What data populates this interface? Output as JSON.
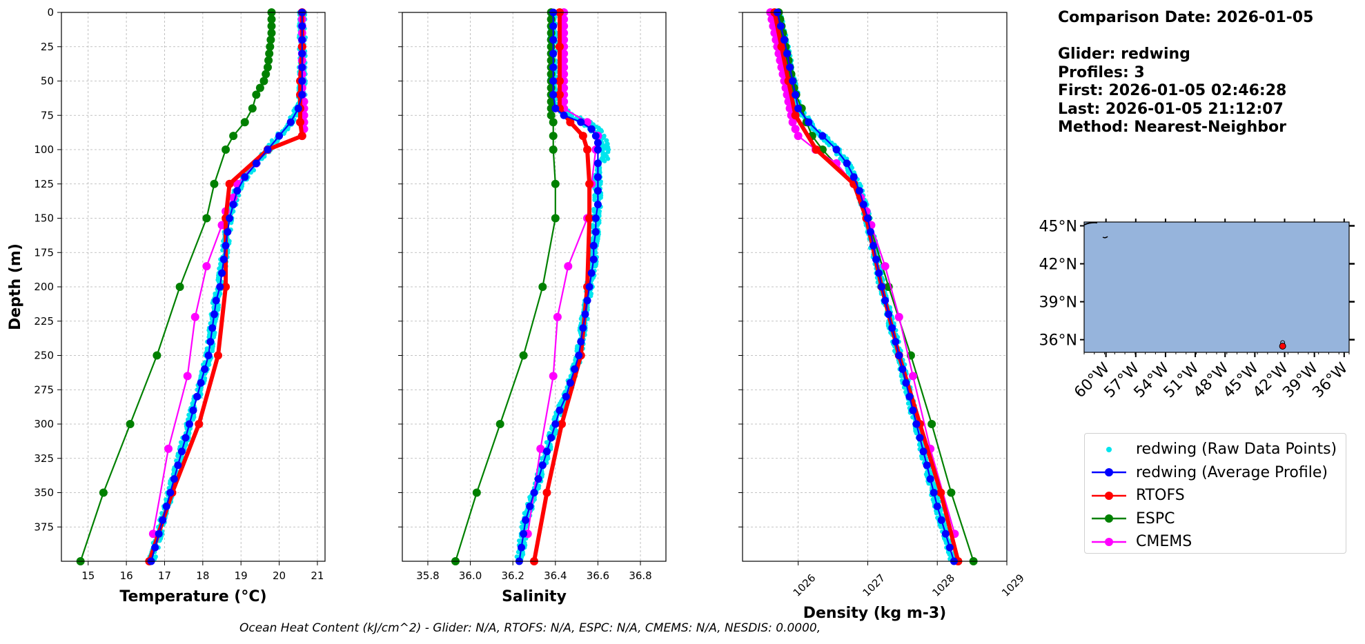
{
  "info": {
    "comparison_date": "Comparison Date: 2026-01-05",
    "glider": "Glider: redwing",
    "profiles": "Profiles: 3",
    "first": "First: 2026-01-05 02:46:28",
    "last": "Last: 2026-01-05 21:12:07",
    "method": "Method: Nearest-Neighbor"
  },
  "footer": "Ocean Heat Content (kJ/cm^2) - Glider: N/A,  RTOFS: N/A,  ESPC: N/A,  CMEMS: N/A,  NESDIS: 0.0000,",
  "colors": {
    "raw": "#00e5ee",
    "avg": "#0000ff",
    "rtofs": "#ff0000",
    "espc": "#008000",
    "cmems": "#ff00ff",
    "ocean": "#96b4dc"
  },
  "legend": [
    {
      "key": "raw",
      "label": "redwing (Raw Data Points)"
    },
    {
      "key": "avg",
      "label": "redwing (Average Profile)"
    },
    {
      "key": "rtofs",
      "label": "RTOFS"
    },
    {
      "key": "espc",
      "label": "ESPC"
    },
    {
      "key": "cmems",
      "label": "CMEMS"
    }
  ],
  "chart_data": [
    {
      "type": "line",
      "xlabel": "Temperature (°C)",
      "ylabel": "Depth (m)",
      "xlim": [
        14.3,
        21.2
      ],
      "ylim": [
        400,
        0
      ],
      "xticks": [
        15,
        16,
        17,
        18,
        19,
        20,
        21
      ],
      "yticks": [
        0,
        25,
        50,
        75,
        100,
        125,
        150,
        175,
        200,
        225,
        250,
        275,
        300,
        325,
        350,
        375
      ],
      "grid": true,
      "series": [
        {
          "name": "redwing (Average Profile)",
          "key": "avg",
          "depth": [
            0,
            10,
            20,
            30,
            40,
            50,
            60,
            70,
            80,
            90,
            100,
            110,
            120,
            130,
            140,
            150,
            160,
            170,
            180,
            190,
            200,
            210,
            220,
            230,
            240,
            250,
            260,
            270,
            280,
            290,
            300,
            310,
            320,
            330,
            340,
            350,
            360,
            370,
            380,
            390,
            400
          ],
          "values": [
            20.6,
            20.6,
            20.6,
            20.6,
            20.6,
            20.6,
            20.6,
            20.5,
            20.3,
            20.0,
            19.7,
            19.4,
            19.1,
            18.9,
            18.8,
            18.7,
            18.65,
            18.6,
            18.55,
            18.5,
            18.45,
            18.35,
            18.3,
            18.25,
            18.2,
            18.15,
            18.05,
            17.95,
            17.85,
            17.75,
            17.65,
            17.55,
            17.45,
            17.35,
            17.25,
            17.15,
            17.05,
            16.95,
            16.85,
            16.75,
            16.65
          ]
        },
        {
          "name": "RTOFS",
          "key": "rtofs",
          "depth": [
            0,
            25,
            50,
            60,
            70,
            80,
            90,
            100,
            125,
            150,
            200,
            250,
            300,
            350,
            400
          ],
          "values": [
            20.6,
            20.6,
            20.55,
            20.55,
            20.55,
            20.55,
            20.6,
            19.7,
            18.7,
            18.6,
            18.6,
            18.4,
            17.9,
            17.2,
            16.6
          ]
        },
        {
          "name": "ESPC",
          "key": "espc",
          "depth": [
            0,
            5,
            10,
            15,
            20,
            25,
            30,
            35,
            40,
            45,
            50,
            55,
            60,
            70,
            80,
            90,
            100,
            125,
            150,
            200,
            250,
            300,
            350,
            400
          ],
          "values": [
            19.8,
            19.8,
            19.8,
            19.8,
            19.78,
            19.76,
            19.74,
            19.72,
            19.7,
            19.65,
            19.6,
            19.5,
            19.4,
            19.3,
            19.1,
            18.8,
            18.6,
            18.3,
            18.1,
            17.4,
            16.8,
            16.1,
            15.4,
            14.8
          ]
        },
        {
          "name": "CMEMS",
          "key": "cmems",
          "depth": [
            0,
            5,
            10,
            15,
            20,
            25,
            30,
            35,
            40,
            45,
            50,
            55,
            60,
            65,
            70,
            75,
            80,
            85,
            90,
            100,
            110,
            125,
            135,
            145,
            155,
            185,
            222,
            265,
            318,
            380
          ],
          "values": [
            20.6,
            20.6,
            20.6,
            20.6,
            20.6,
            20.6,
            20.6,
            20.6,
            20.6,
            20.6,
            20.6,
            20.6,
            20.6,
            20.65,
            20.65,
            20.65,
            20.65,
            20.65,
            20.6,
            19.7,
            19.4,
            18.9,
            18.8,
            18.6,
            18.5,
            18.1,
            17.8,
            17.6,
            17.1,
            16.7
          ]
        }
      ]
    },
    {
      "type": "line",
      "xlabel": "Salinity",
      "ylabel": "",
      "xlim": [
        35.68,
        36.92
      ],
      "ylim": [
        400,
        0
      ],
      "xticks": [
        35.8,
        36.0,
        36.2,
        36.4,
        36.6,
        36.8
      ],
      "tick_labels": [
        "35.8",
        "36.0",
        "36.2",
        "36.4",
        "36.6",
        "36.8"
      ],
      "grid": true,
      "series": [
        {
          "name": "redwing (Average Profile)",
          "key": "avg",
          "depth": [
            0,
            10,
            20,
            30,
            40,
            50,
            60,
            70,
            75,
            80,
            85,
            90,
            95,
            100,
            110,
            120,
            130,
            140,
            150,
            160,
            170,
            180,
            190,
            200,
            210,
            220,
            230,
            240,
            250,
            260,
            270,
            280,
            290,
            300,
            310,
            320,
            330,
            340,
            350,
            360,
            370,
            380,
            390,
            400
          ],
          "values": [
            36.39,
            36.39,
            36.39,
            36.39,
            36.39,
            36.39,
            36.39,
            36.4,
            36.44,
            36.52,
            36.57,
            36.59,
            36.6,
            36.6,
            36.6,
            36.6,
            36.6,
            36.6,
            36.59,
            36.59,
            36.58,
            36.58,
            36.57,
            36.56,
            36.55,
            36.54,
            36.53,
            36.52,
            36.51,
            36.49,
            36.47,
            36.45,
            36.42,
            36.4,
            36.38,
            36.36,
            36.34,
            36.32,
            36.3,
            36.28,
            36.26,
            36.25,
            36.24,
            36.23
          ]
        },
        {
          "name": "RTOFS",
          "key": "rtofs",
          "depth": [
            0,
            25,
            50,
            60,
            70,
            80,
            90,
            100,
            125,
            150,
            200,
            250,
            300,
            350,
            400
          ],
          "values": [
            36.42,
            36.42,
            36.42,
            36.42,
            36.42,
            36.47,
            36.53,
            36.55,
            36.56,
            36.56,
            36.55,
            36.52,
            36.43,
            36.36,
            36.3
          ]
        },
        {
          "name": "ESPC",
          "key": "espc",
          "depth": [
            0,
            5,
            10,
            15,
            20,
            25,
            30,
            35,
            40,
            45,
            50,
            55,
            60,
            65,
            70,
            75,
            80,
            90,
            100,
            125,
            150,
            200,
            250,
            300,
            350,
            400
          ],
          "values": [
            36.38,
            36.38,
            36.38,
            36.38,
            36.38,
            36.38,
            36.38,
            36.38,
            36.38,
            36.38,
            36.38,
            36.38,
            36.38,
            36.38,
            36.38,
            36.38,
            36.39,
            36.39,
            36.39,
            36.4,
            36.4,
            36.34,
            36.25,
            36.14,
            36.03,
            35.93
          ]
        },
        {
          "name": "CMEMS",
          "key": "cmems",
          "depth": [
            0,
            5,
            10,
            15,
            20,
            25,
            30,
            35,
            40,
            45,
            50,
            55,
            60,
            65,
            70,
            80,
            90,
            100,
            125,
            150,
            185,
            222,
            265,
            318,
            380
          ],
          "values": [
            36.44,
            36.44,
            36.44,
            36.44,
            36.44,
            36.44,
            36.44,
            36.44,
            36.44,
            36.44,
            36.44,
            36.44,
            36.44,
            36.44,
            36.44,
            36.55,
            36.6,
            36.59,
            36.57,
            36.55,
            36.46,
            36.41,
            36.39,
            36.33,
            36.27
          ]
        }
      ],
      "raw_points": {
        "key": "raw",
        "spread": 0.03
      }
    },
    {
      "type": "line",
      "xlabel": "Density (kg m-3)",
      "ylabel": "",
      "xlim": [
        1025.2,
        1029.0
      ],
      "ylim": [
        400,
        0
      ],
      "xticks": [
        1026,
        1027,
        1028,
        1029
      ],
      "grid": true,
      "series": [
        {
          "name": "redwing (Average Profile)",
          "key": "avg",
          "depth": [
            0,
            10,
            20,
            30,
            40,
            50,
            60,
            70,
            80,
            90,
            100,
            110,
            120,
            130,
            140,
            150,
            160,
            170,
            180,
            190,
            200,
            210,
            220,
            230,
            240,
            250,
            260,
            270,
            280,
            290,
            300,
            310,
            320,
            330,
            340,
            350,
            360,
            370,
            380,
            390,
            400
          ],
          "values": [
            1025.7,
            1025.75,
            1025.8,
            1025.84,
            1025.88,
            1025.92,
            1025.96,
            1026.0,
            1026.15,
            1026.35,
            1026.55,
            1026.7,
            1026.8,
            1026.88,
            1026.94,
            1027.0,
            1027.04,
            1027.08,
            1027.12,
            1027.16,
            1027.2,
            1027.25,
            1027.3,
            1027.35,
            1027.4,
            1027.45,
            1027.5,
            1027.55,
            1027.6,
            1027.65,
            1027.7,
            1027.75,
            1027.8,
            1027.85,
            1027.9,
            1027.95,
            1028.0,
            1028.06,
            1028.12,
            1028.18,
            1028.24
          ]
        },
        {
          "name": "RTOFS",
          "key": "rtofs",
          "depth": [
            0,
            25,
            50,
            75,
            100,
            125,
            150,
            200,
            250,
            300,
            350,
            400
          ],
          "values": [
            1025.66,
            1025.76,
            1025.86,
            1025.96,
            1026.26,
            1026.8,
            1026.98,
            1027.2,
            1027.45,
            1027.75,
            1028.05,
            1028.3
          ]
        },
        {
          "name": "ESPC",
          "key": "espc",
          "depth": [
            0,
            5,
            10,
            15,
            20,
            25,
            30,
            35,
            40,
            45,
            50,
            55,
            60,
            70,
            80,
            90,
            100,
            125,
            150,
            200,
            250,
            300,
            350,
            400
          ],
          "values": [
            1025.72,
            1025.74,
            1025.76,
            1025.78,
            1025.8,
            1025.82,
            1025.84,
            1025.86,
            1025.88,
            1025.9,
            1025.92,
            1025.94,
            1025.97,
            1026.05,
            1026.12,
            1026.2,
            1026.35,
            1026.8,
            1027.0,
            1027.3,
            1027.62,
            1027.92,
            1028.2,
            1028.52
          ]
        },
        {
          "name": "CMEMS",
          "key": "cmems",
          "depth": [
            0,
            5,
            10,
            15,
            20,
            25,
            30,
            35,
            40,
            45,
            50,
            55,
            60,
            65,
            70,
            75,
            80,
            85,
            90,
            100,
            110,
            125,
            135,
            145,
            155,
            185,
            222,
            265,
            318,
            380
          ],
          "values": [
            1025.6,
            1025.62,
            1025.64,
            1025.66,
            1025.68,
            1025.7,
            1025.72,
            1025.74,
            1025.76,
            1025.78,
            1025.8,
            1025.82,
            1025.84,
            1025.86,
            1025.88,
            1025.9,
            1025.92,
            1025.96,
            1026.0,
            1026.25,
            1026.55,
            1026.8,
            1026.9,
            1026.98,
            1027.05,
            1027.25,
            1027.45,
            1027.65,
            1027.9,
            1028.25
          ]
        }
      ]
    },
    {
      "type": "map",
      "lat_ticks": [
        "45°N",
        "42°N",
        "39°N",
        "36°N"
      ],
      "lon_ticks": [
        "60°W",
        "57°W",
        "54°W",
        "51°W",
        "48°W",
        "45°W",
        "42°W",
        "39°W",
        "36°W"
      ],
      "lat_range": [
        35,
        45.3
      ],
      "lon_range": [
        62.2,
        35.5
      ],
      "glider_position": {
        "lat": 35.6,
        "lon": 42.2
      }
    }
  ]
}
